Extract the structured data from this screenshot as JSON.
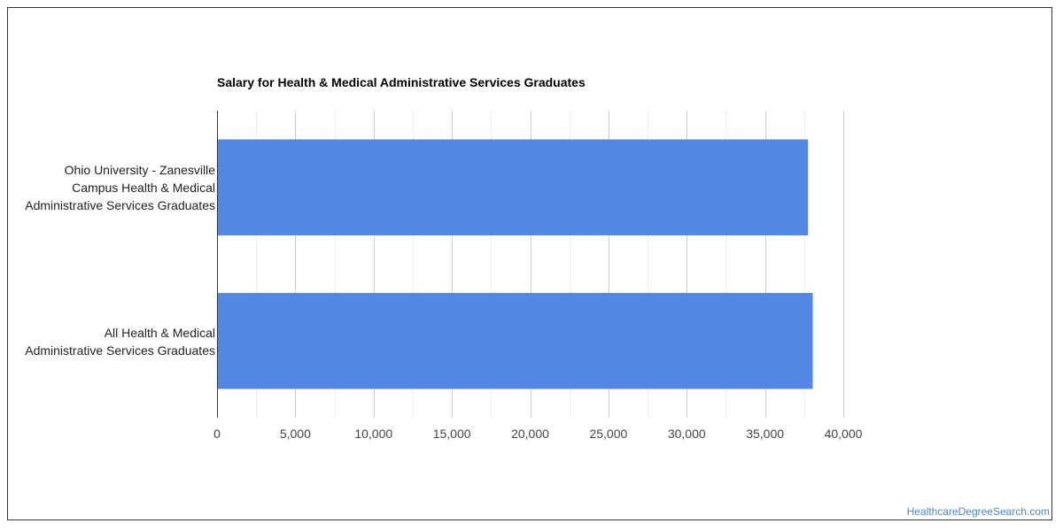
{
  "chart_data": {
    "type": "bar",
    "orientation": "horizontal",
    "title": "Salary for Health & Medical Administrative Services Graduates",
    "categories": [
      "Ohio University - Zanesville\nCampus Health & Medical\nAdministrative Services Graduates",
      "All Health & Medical\nAdministrative Services Graduates"
    ],
    "values": [
      37750,
      38050
    ],
    "xlim": [
      0,
      40000
    ],
    "xticks": [
      0,
      5000,
      10000,
      15000,
      20000,
      25000,
      30000,
      35000,
      40000
    ],
    "xtick_labels": [
      "0",
      "5,000",
      "10,000",
      "15,000",
      "20,000",
      "25,000",
      "30,000",
      "35,000",
      "40,000"
    ],
    "bar_color": "#5487e3",
    "grid": true,
    "legend": "none"
  },
  "watermark": "HealthcareDegreeSearch.com"
}
